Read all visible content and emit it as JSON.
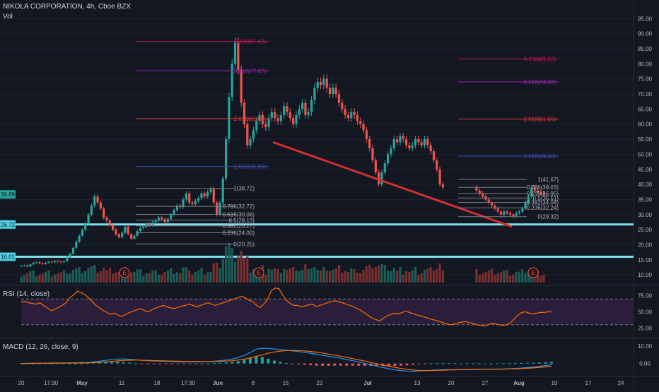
{
  "header": {
    "symbol": "NIKOLA CORPORATION, 4h, Cboe BZX",
    "volume_label": "Vol",
    "rsi_label": "RSI (14, close)",
    "macd_label": "MACD (12, 26, close, 9)"
  },
  "chart_data": [
    {
      "type": "candlestick",
      "title": "NIKOLA CORPORATION, 4h, Cboe BZX",
      "x_ticks": [
        "20",
        "17:30",
        "May",
        "11",
        "18",
        "17:30",
        "Jun",
        "8",
        "15",
        "22",
        "Jul",
        "13",
        "20",
        "27",
        "Aug",
        "10",
        "17",
        "24"
      ],
      "y_ticks": [
        10,
        15,
        20,
        25,
        30,
        35,
        40,
        45,
        50,
        55,
        60,
        65,
        70,
        75,
        80,
        85,
        90,
        95
      ],
      "ylim": [
        7,
        96
      ],
      "price_tags": [
        {
          "label": "36.69",
          "value": 36.69,
          "color": "#26a69a"
        },
        {
          "label": "26.72",
          "value": 26.72,
          "color": "#4dd0e1"
        },
        {
          "label": "16.01",
          "value": 16.01,
          "color": "#4dd0e1"
        }
      ],
      "horizontal_levels": [
        26.72,
        16.01
      ],
      "trendline": {
        "from": [
          "Jun 10",
          54.0
        ],
        "to": [
          "Aug 1",
          26.0
        ],
        "color": "#d32f2f"
      },
      "fib_extension_left": [
        {
          "label": "4.236(87.42)",
          "value": 87.42,
          "color": "#c2185b"
        },
        {
          "label": "3.618(77.67)",
          "value": 77.67,
          "color": "#9c27b0"
        },
        {
          "label": "2.618(61.80)",
          "value": 61.8,
          "color": "#e53935"
        },
        {
          "label": "1.618(45.95)",
          "value": 45.95,
          "color": "#3f51b5"
        }
      ],
      "fib_retracement_left": [
        {
          "label": "1(38.72)",
          "value": 38.72
        },
        {
          "label": "0.786(32.72)",
          "value": 32.72
        },
        {
          "label": "0.618(30.06)",
          "value": 30.06
        },
        {
          "label": "0.5(28.13)",
          "value": 28.13
        },
        {
          "label": "0.382(26.27)",
          "value": 26.27
        },
        {
          "label": "0.236(24.00)",
          "value": 24.0
        },
        {
          "label": "0(20.25)",
          "value": 20.25
        }
      ],
      "fib_extension_right": [
        {
          "label": "4.236(81.63)",
          "value": 81.63,
          "color": "#c2185b"
        },
        {
          "label": "3.618(74.00)",
          "value": 74.0,
          "color": "#9c27b0"
        },
        {
          "label": "2.618(61.65)",
          "value": 61.65,
          "color": "#e53935"
        },
        {
          "label": "1.618(49.40)",
          "value": 49.4,
          "color": "#3f51b5"
        }
      ],
      "fib_retracement_right": [
        {
          "label": "1(41.67)",
          "value": 41.67
        },
        {
          "label": "0.786(39.03)",
          "value": 39.03
        },
        {
          "label": "0.618(36.95)",
          "value": 36.95
        },
        {
          "label": "0.5(35.51)",
          "value": 35.51
        },
        {
          "label": "0.382(34.04)",
          "value": 34.04
        },
        {
          "label": "0.236(32.24)",
          "value": 32.24
        },
        {
          "label": "0(29.32)",
          "value": 29.32
        }
      ],
      "earnings_markers": [
        "E",
        "E",
        "E"
      ],
      "close_series": [
        13,
        13.2,
        12.8,
        13.5,
        14,
        14.2,
        13.8,
        13.6,
        14,
        14.4,
        14.2,
        14.6,
        14.4,
        14.2,
        14.5,
        16,
        17,
        19,
        21,
        23,
        25,
        27,
        30,
        33,
        36,
        34,
        32,
        29,
        28,
        26.5,
        25,
        23.5,
        22.5,
        24,
        26,
        23.5,
        22,
        23,
        24.5,
        25.5,
        26,
        27,
        26.5,
        27.5,
        28,
        29,
        28.5,
        27.5,
        28.5,
        30,
        31.5,
        33,
        32.5,
        35,
        37,
        34,
        33.5,
        34.5,
        35.5,
        37,
        36,
        37.5,
        38.5,
        34,
        30,
        34,
        42,
        55,
        69,
        80,
        87,
        78,
        67,
        60,
        53,
        55,
        58,
        61,
        63,
        60,
        59,
        62,
        64,
        62,
        61,
        63,
        66,
        64,
        62,
        60,
        63,
        65,
        67,
        63,
        64,
        68,
        72,
        74,
        73,
        75,
        72,
        70,
        72,
        70,
        67,
        65,
        63,
        62,
        64,
        63,
        61,
        60,
        58,
        55,
        52,
        48,
        44,
        40,
        44,
        47,
        50,
        52,
        55,
        54,
        56,
        55,
        53,
        52,
        53,
        55,
        54,
        53,
        55,
        53,
        51,
        48,
        45,
        40,
        39,
        38,
        37,
        36,
        35,
        34,
        33,
        32,
        31,
        30,
        31,
        30.5,
        30,
        29.5,
        30.5,
        31,
        32,
        34,
        36,
        39,
        38,
        37.5,
        37.2,
        36.69
      ]
    },
    {
      "type": "line",
      "title": "RSI (14, close)",
      "y_ticks": [
        75.0,
        50.0,
        25.0
      ],
      "ylim": [
        10,
        90
      ],
      "band": [
        30,
        70
      ],
      "values": [
        65,
        66,
        64,
        63,
        62,
        64,
        60,
        56,
        52,
        54,
        57,
        60,
        64,
        72,
        76,
        82,
        80,
        77,
        72,
        66,
        60,
        56,
        52,
        49,
        46,
        48,
        45,
        43,
        46,
        49,
        51,
        53,
        55,
        52,
        50,
        53,
        56,
        58,
        60,
        58,
        56,
        55,
        57,
        59,
        60,
        62,
        60,
        58,
        60,
        62,
        64,
        62,
        60,
        62,
        64,
        66,
        68,
        70,
        72,
        74,
        72,
        68,
        66,
        60,
        57,
        62,
        70,
        83,
        87,
        86,
        76,
        68,
        63,
        60,
        60,
        58,
        59,
        61,
        62,
        58,
        60,
        62,
        64,
        66,
        67,
        66,
        64,
        62,
        60,
        58,
        55,
        52,
        48,
        44,
        40,
        38,
        36,
        40,
        44,
        46,
        48,
        47,
        49,
        51,
        49,
        47,
        45,
        44,
        42,
        40,
        38,
        37,
        35,
        33,
        31,
        30,
        31,
        33,
        34,
        35,
        33,
        32,
        30,
        29,
        28,
        30,
        32,
        31,
        30,
        29,
        30,
        33,
        39,
        45,
        49,
        50,
        48,
        47,
        48,
        49,
        49,
        50,
        50
      ]
    },
    {
      "type": "line",
      "title": "MACD (12, 26, close, 9)",
      "y_ticks": [
        10.0,
        0.0
      ],
      "ylim": [
        -7,
        14
      ],
      "macd_color": "#2196f3",
      "signal_color": "#ff6d00",
      "macd": [
        0.0,
        0.1,
        0.1,
        0.2,
        0.2,
        0.3,
        0.3,
        0.3,
        0.4,
        0.4,
        0.5,
        0.6,
        0.9,
        1.3,
        1.8,
        2.2,
        2.5,
        2.6,
        2.4,
        2.1,
        1.8,
        1.6,
        1.4,
        1.3,
        1.2,
        1.1,
        1.0,
        0.9,
        0.9,
        0.9,
        1.0,
        1.1,
        1.3,
        1.6,
        2.0,
        2.5,
        3.4,
        4.6,
        6.3,
        8.2,
        8.7,
        8.6,
        8.3,
        8.0,
        7.6,
        7.2,
        6.8,
        6.4,
        5.9,
        5.3,
        4.7,
        4.1,
        3.6,
        3.0,
        2.3,
        1.6,
        0.9,
        0.1,
        -0.7,
        -1.5,
        -2.3,
        -3.0,
        -3.6,
        -4.0,
        -4.3,
        -4.4,
        -4.3,
        -4.1,
        -3.9,
        -3.7,
        -3.6,
        -3.5,
        -3.5,
        -3.5,
        -3.4,
        -3.4,
        -3.3,
        -3.3,
        -3.3,
        -3.2,
        -3.1,
        -3.0,
        -2.8,
        -2.6,
        -2.3,
        -2.0,
        -1.6,
        -1.2,
        -0.7
      ],
      "signal": [
        0.0,
        0.0,
        0.1,
        0.1,
        0.1,
        0.2,
        0.2,
        0.2,
        0.3,
        0.3,
        0.3,
        0.4,
        0.5,
        0.7,
        0.9,
        1.2,
        1.5,
        1.8,
        1.9,
        2.0,
        1.9,
        1.8,
        1.7,
        1.6,
        1.5,
        1.4,
        1.3,
        1.2,
        1.1,
        1.1,
        1.1,
        1.1,
        1.1,
        1.2,
        1.4,
        1.6,
        2.0,
        2.5,
        3.2,
        4.1,
        5.0,
        5.9,
        6.6,
        7.1,
        7.4,
        7.5,
        7.4,
        7.2,
        6.9,
        6.5,
        6.0,
        5.4,
        4.8,
        4.2,
        3.5,
        2.8,
        2.1,
        1.4,
        0.6,
        -0.2,
        -0.9,
        -1.6,
        -2.2,
        -2.8,
        -3.3,
        -3.7,
        -3.9,
        -4.0,
        -4.0,
        -3.9,
        -3.8,
        -3.7,
        -3.6,
        -3.5,
        -3.5,
        -3.4,
        -3.4,
        -3.3,
        -3.3,
        -3.2,
        -3.2,
        -3.1,
        -3.0,
        -2.9,
        -2.7,
        -2.5,
        -2.2,
        -1.9,
        -1.5
      ]
    }
  ]
}
